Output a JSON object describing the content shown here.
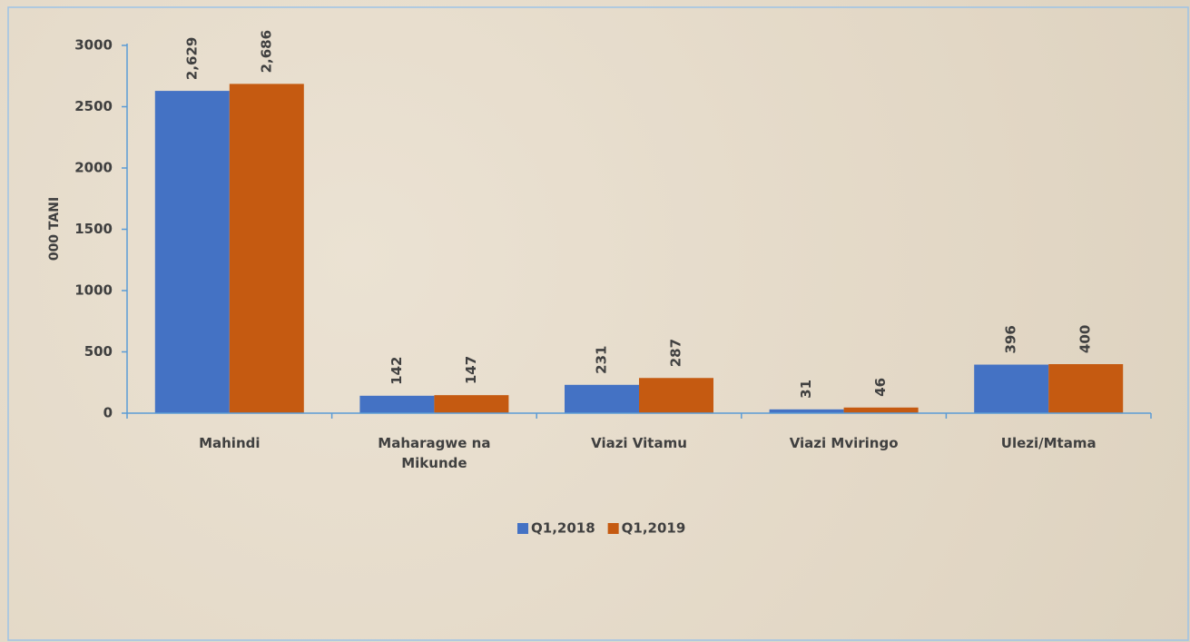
{
  "chart_data": {
    "type": "bar",
    "y_label": "000 TANI",
    "categories": [
      "Mahindi",
      "Maharagwe na Mikunde",
      "Viazi Vitamu",
      "Viazi Mviringo",
      "Ulezi/Mtama"
    ],
    "series": [
      {
        "name": "Q1,2018",
        "color": "#4472c4",
        "values": [
          2629,
          142,
          231,
          31,
          396
        ],
        "value_labels": [
          "2,629",
          "142",
          "231",
          "31",
          "396"
        ]
      },
      {
        "name": "Q1,2019",
        "color": "#c55a11",
        "values": [
          2686,
          147,
          287,
          46,
          400
        ],
        "value_labels": [
          "2,686",
          "147",
          "287",
          "46",
          "400"
        ]
      }
    ],
    "ylim": [
      0,
      3000
    ],
    "yticks": [
      0,
      500,
      1000,
      1500,
      2000,
      2500,
      3000
    ],
    "grid": false,
    "legend": "bottom"
  }
}
